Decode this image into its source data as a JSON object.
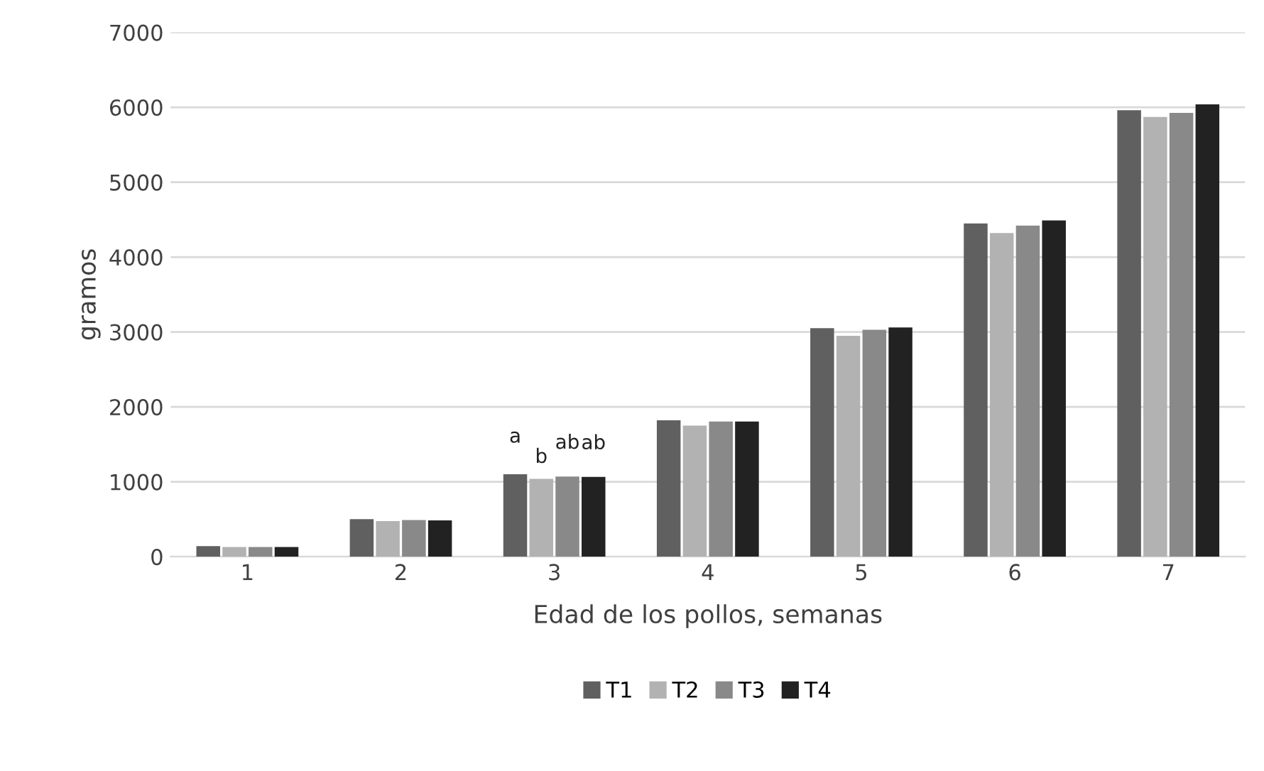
{
  "chart_data": {
    "type": "bar",
    "xlabel": "Edad de los pollos, semanas",
    "ylabel": "gramos",
    "categories": [
      "1",
      "2",
      "3",
      "4",
      "5",
      "6",
      "7"
    ],
    "series": [
      {
        "name": "T1",
        "color": "#606060",
        "values": [
          140,
          500,
          1100,
          1820,
          3050,
          4450,
          5960
        ]
      },
      {
        "name": "T2",
        "color": "#b2b2b2",
        "values": [
          130,
          475,
          1040,
          1750,
          2950,
          4320,
          5870
        ]
      },
      {
        "name": "T3",
        "color": "#898989",
        "values": [
          130,
          490,
          1070,
          1805,
          3030,
          4420,
          5925
        ]
      },
      {
        "name": "T4",
        "color": "#222222",
        "values": [
          130,
          485,
          1065,
          1805,
          3060,
          4490,
          6040
        ]
      }
    ],
    "annotations": [
      {
        "text": "a",
        "x": "3",
        "y": 1100
      },
      {
        "text": "b",
        "x": "3",
        "y": 1040
      },
      {
        "text": "ab",
        "x": "3",
        "y": 1070
      },
      {
        "text": "ab",
        "x": "3",
        "y": 1065
      }
    ],
    "ylim": [
      0,
      7000
    ],
    "yticks": [
      0,
      1000,
      2000,
      3000,
      4000,
      5000,
      6000,
      7000
    ],
    "grid": "y",
    "legend": "bottom"
  }
}
